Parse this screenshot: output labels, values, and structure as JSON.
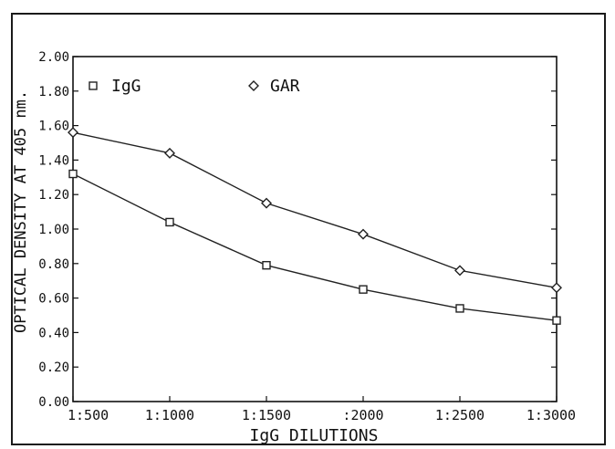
{
  "chart_data": {
    "type": "line",
    "title": "",
    "xlabel": "IgG DILUTIONS",
    "ylabel": "OPTICAL DENSITY AT 405 nm.",
    "categories": [
      "1:500",
      "1:1000",
      "1:1500",
      ":2000",
      "1:2500",
      "1:3000"
    ],
    "yticks": [
      "0.00",
      "0.20",
      "0.40",
      "0.60",
      "0.80",
      "1.00",
      "1.20",
      "1.40",
      "1.60",
      "1.80",
      "2.00"
    ],
    "ylim": [
      0,
      2.0
    ],
    "grid": false,
    "legend_position": "top-left",
    "series": [
      {
        "name": "IgG",
        "marker": "square",
        "values": [
          1.32,
          1.04,
          0.79,
          0.65,
          0.54,
          0.47
        ]
      },
      {
        "name": "GAR",
        "marker": "diamond",
        "values": [
          1.56,
          1.44,
          1.15,
          0.97,
          0.76,
          0.66
        ]
      }
    ],
    "colors": {
      "line": "#222222",
      "axis": "#111111",
      "marker_fill": "#ffffff"
    }
  }
}
